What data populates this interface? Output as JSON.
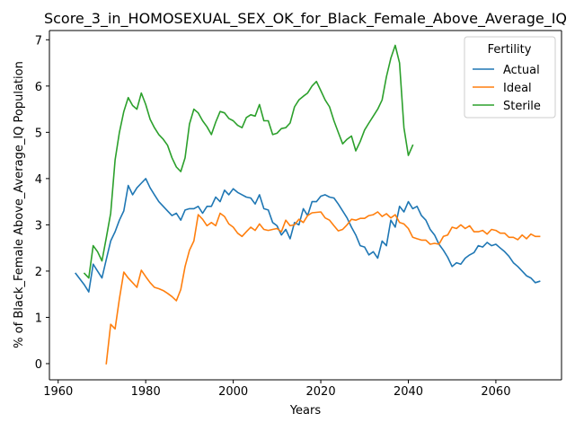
{
  "chart_data": {
    "type": "line",
    "title": "Score_3_in_HOMOSEXUAL_SEX_OK_for_Black_Female_Above_Average_IQ",
    "xlabel": "Years",
    "ylabel": "% of Black_Female Above_Average_IQ Population",
    "xlim": [
      1958,
      2075
    ],
    "ylim": [
      -0.35,
      7.2
    ],
    "xticks": [
      1960,
      1980,
      2000,
      2020,
      2040,
      2060
    ],
    "yticks": [
      0,
      1,
      2,
      3,
      4,
      5,
      6,
      7
    ],
    "grid": false,
    "legend": {
      "title": "Fertility",
      "placement": "top-right"
    },
    "series": [
      {
        "name": "Actual",
        "color": "#1f77b4",
        "x": [
          1964,
          1966,
          1967,
          1968,
          1969,
          1970,
          1971,
          1972,
          1973,
          1974,
          1975,
          1976,
          1977,
          1978,
          1979,
          1980,
          1981,
          1982,
          1983,
          1984,
          1985,
          1986,
          1987,
          1988,
          1989,
          1990,
          1991,
          1992,
          1993,
          1994,
          1995,
          1996,
          1997,
          1998,
          1999,
          2000,
          2001,
          2002,
          2003,
          2004,
          2005,
          2006,
          2007,
          2008,
          2009,
          2010,
          2011,
          2012,
          2013,
          2014,
          2015,
          2016,
          2017,
          2018,
          2019,
          2020,
          2021,
          2022,
          2023,
          2024,
          2025,
          2026,
          2027,
          2028,
          2029,
          2030,
          2031,
          2032,
          2033,
          2034,
          2035,
          2036,
          2037,
          2038,
          2039,
          2040,
          2041,
          2042,
          2043,
          2044,
          2045,
          2046,
          2047,
          2048,
          2049,
          2050,
          2051,
          2052,
          2053,
          2054,
          2055,
          2056,
          2057,
          2058,
          2059,
          2060,
          2061,
          2062,
          2063,
          2064,
          2065,
          2066,
          2067,
          2068,
          2069,
          2070
        ],
        "y": [
          1.95,
          1.7,
          1.55,
          2.15,
          2.0,
          1.85,
          2.25,
          2.65,
          2.85,
          3.1,
          3.3,
          3.85,
          3.65,
          3.8,
          3.9,
          4.0,
          3.8,
          3.65,
          3.5,
          3.4,
          3.3,
          3.2,
          3.25,
          3.1,
          3.32,
          3.35,
          3.35,
          3.4,
          3.25,
          3.4,
          3.4,
          3.6,
          3.5,
          3.75,
          3.65,
          3.78,
          3.7,
          3.65,
          3.6,
          3.58,
          3.45,
          3.65,
          3.35,
          3.32,
          3.05,
          2.98,
          2.78,
          2.9,
          2.7,
          3.05,
          3.0,
          3.35,
          3.2,
          3.5,
          3.5,
          3.62,
          3.65,
          3.6,
          3.58,
          3.45,
          3.3,
          3.15,
          2.95,
          2.78,
          2.55,
          2.52,
          2.35,
          2.42,
          2.28,
          2.65,
          2.55,
          3.1,
          2.95,
          3.4,
          3.28,
          3.5,
          3.35,
          3.4,
          3.2,
          3.1,
          2.9,
          2.78,
          2.58,
          2.45,
          2.3,
          2.1,
          2.18,
          2.15,
          2.28,
          2.35,
          2.4,
          2.55,
          2.52,
          2.62,
          2.55,
          2.58,
          2.5,
          2.42,
          2.32,
          2.18,
          2.1,
          2.0,
          1.9,
          1.85,
          1.75,
          1.78
        ]
      },
      {
        "name": "Ideal",
        "color": "#ff7f0e",
        "x": [
          1971,
          1972,
          1973,
          1974,
          1975,
          1976,
          1977,
          1978,
          1979,
          1980,
          1981,
          1982,
          1983,
          1984,
          1985,
          1986,
          1987,
          1988,
          1989,
          1990,
          1991,
          1992,
          1993,
          1994,
          1995,
          1996,
          1997,
          1998,
          1999,
          2000,
          2001,
          2002,
          2003,
          2004,
          2005,
          2006,
          2007,
          2008,
          2009,
          2010,
          2011,
          2012,
          2013,
          2014,
          2015,
          2016,
          2017,
          2018,
          2019,
          2020,
          2021,
          2022,
          2023,
          2024,
          2025,
          2026,
          2027,
          2028,
          2029,
          2030,
          2031,
          2032,
          2033,
          2034,
          2035,
          2036,
          2037,
          2038,
          2039,
          2040,
          2041,
          2042,
          2043,
          2044,
          2045,
          2046,
          2047,
          2048,
          2049,
          2050,
          2051,
          2052,
          2053,
          2054,
          2055,
          2056,
          2057,
          2058,
          2059,
          2060,
          2061,
          2062,
          2063,
          2064,
          2065,
          2066,
          2067,
          2068,
          2069,
          2070
        ],
        "y": [
          0.0,
          0.85,
          0.75,
          1.4,
          1.98,
          1.85,
          1.75,
          1.65,
          2.02,
          1.88,
          1.75,
          1.65,
          1.62,
          1.58,
          1.52,
          1.45,
          1.36,
          1.6,
          2.1,
          2.45,
          2.65,
          3.22,
          3.12,
          2.98,
          3.05,
          2.98,
          3.25,
          3.18,
          3.02,
          2.95,
          2.82,
          2.75,
          2.85,
          2.95,
          2.88,
          3.02,
          2.9,
          2.88,
          2.9,
          2.92,
          2.85,
          3.1,
          2.98,
          3.0,
          3.12,
          3.05,
          3.2,
          3.26,
          3.27,
          3.28,
          3.15,
          3.1,
          2.98,
          2.87,
          2.9,
          3.0,
          3.12,
          3.1,
          3.14,
          3.14,
          3.2,
          3.22,
          3.28,
          3.18,
          3.24,
          3.15,
          3.22,
          3.05,
          3.02,
          2.92,
          2.73,
          2.7,
          2.67,
          2.67,
          2.58,
          2.6,
          2.58,
          2.75,
          2.78,
          2.95,
          2.92,
          3.0,
          2.92,
          2.98,
          2.85,
          2.85,
          2.88,
          2.8,
          2.9,
          2.88,
          2.82,
          2.82,
          2.73,
          2.73,
          2.68,
          2.78,
          2.7,
          2.8,
          2.75,
          2.75
        ]
      },
      {
        "name": "Sterile",
        "color": "#2ca02c",
        "x": [
          1966,
          1967,
          1968,
          1969,
          1970,
          1971,
          1972,
          1973,
          1974,
          1975,
          1976,
          1977,
          1978,
          1979,
          1980,
          1981,
          1982,
          1983,
          1984,
          1985,
          1986,
          1987,
          1988,
          1989,
          1990,
          1991,
          1992,
          1993,
          1994,
          1995,
          1996,
          1997,
          1998,
          1999,
          2000,
          2001,
          2002,
          2003,
          2004,
          2005,
          2006,
          2007,
          2008,
          2009,
          2010,
          2011,
          2012,
          2013,
          2014,
          2015,
          2016,
          2017,
          2018,
          2019,
          2020,
          2021,
          2022,
          2023,
          2024,
          2025,
          2026,
          2027,
          2028,
          2029,
          2030,
          2031,
          2032,
          2033,
          2034,
          2035,
          2036,
          2037,
          2038,
          2039,
          2040,
          2041
        ],
        "y": [
          1.95,
          1.85,
          2.55,
          2.42,
          2.22,
          2.72,
          3.25,
          4.4,
          5.0,
          5.45,
          5.75,
          5.58,
          5.5,
          5.85,
          5.6,
          5.28,
          5.1,
          4.95,
          4.85,
          4.72,
          4.45,
          4.25,
          4.15,
          4.45,
          5.18,
          5.5,
          5.42,
          5.25,
          5.12,
          4.95,
          5.22,
          5.45,
          5.42,
          5.3,
          5.25,
          5.15,
          5.1,
          5.32,
          5.38,
          5.35,
          5.6,
          5.25,
          5.25,
          4.95,
          4.98,
          5.08,
          5.1,
          5.2,
          5.55,
          5.7,
          5.78,
          5.85,
          6.0,
          6.1,
          5.9,
          5.7,
          5.55,
          5.25,
          5.0,
          4.75,
          4.85,
          4.92,
          4.6,
          4.8,
          5.05,
          5.2,
          5.35,
          5.5,
          5.7,
          6.2,
          6.6,
          6.88,
          6.5,
          5.1,
          4.5,
          4.72
        ]
      }
    ]
  }
}
